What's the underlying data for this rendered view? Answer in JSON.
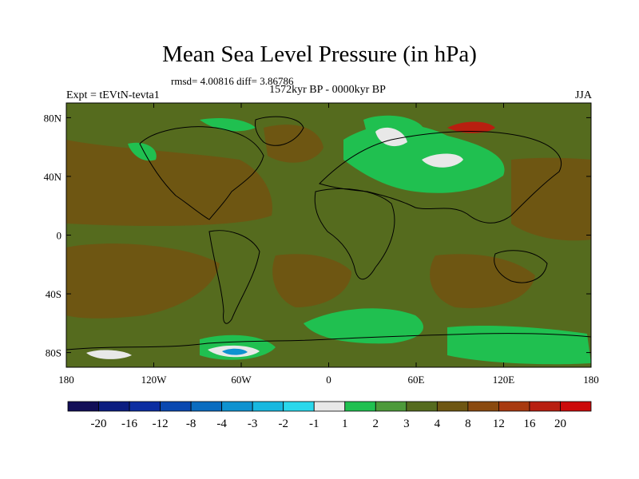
{
  "chart_data": {
    "type": "heatmap",
    "title": "Mean Sea Level Pressure (in hPa)",
    "stats_text": "rmsd= 4.00816  diff= 3.86786",
    "subtitle": "1572kyr BP - 0000kyr BP",
    "left_label": "Expt = tEVtN-tevta1",
    "right_label": "JJA",
    "x_ticks": [
      "180",
      "120W",
      "60W",
      "0",
      "60E",
      "120E",
      "180"
    ],
    "x_tick_values": [
      -180,
      -120,
      -60,
      0,
      60,
      120,
      180
    ],
    "y_ticks": [
      "80N",
      "40N",
      "0",
      "40S",
      "80S"
    ],
    "y_tick_values": [
      80,
      40,
      0,
      -40,
      -80
    ],
    "xlim": [
      -180,
      180
    ],
    "ylim": [
      -90,
      90
    ],
    "colorbar": {
      "labels": [
        "-20",
        "-16",
        "-12",
        "-8",
        "-4",
        "-3",
        "-2",
        "-1",
        "1",
        "2",
        "3",
        "4",
        "8",
        "12",
        "16",
        "20"
      ],
      "colors": [
        "#120e57",
        "#0c1d80",
        "#0c2da1",
        "#0a48b0",
        "#0a6cc0",
        "#0f92d0",
        "#18b8e0",
        "#2ad8ec",
        "#e8e8e8",
        "#20c050",
        "#4d9a3a",
        "#556b1e",
        "#6e5612",
        "#8a4a10",
        "#a83a10",
        "#b81f10",
        "#cc0a0a"
      ]
    }
  }
}
